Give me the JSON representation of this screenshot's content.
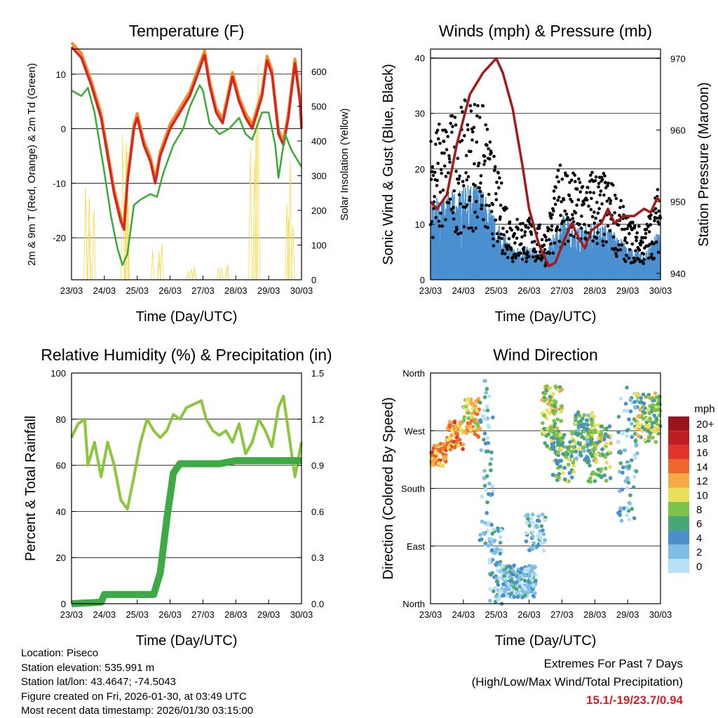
{
  "chart_data": [
    {
      "type": "line",
      "title": "Temperature (F)",
      "xlabel": "Time (Day/UTC)",
      "ylabel": "2m & 9m T (Red, Orange) & 2m Td (Green)",
      "y2label": "Solar Insolation (Yellow)",
      "xticks": [
        "23/03",
        "24/03",
        "25/03",
        "26/03",
        "27/03",
        "28/03",
        "29/03",
        "30/03"
      ],
      "ylim": [
        -27.7,
        14.6
      ],
      "yticks": [
        10,
        0,
        -10,
        -20
      ],
      "y2lim": [
        0,
        665
      ],
      "y2ticks": [
        0,
        100,
        200,
        300,
        400,
        500,
        600
      ],
      "series": [
        {
          "name": "2m T",
          "color": "#d7261e",
          "points": [
            [
              0,
              15
            ],
            [
              0.3,
              13
            ],
            [
              0.6,
              8
            ],
            [
              0.9,
              2
            ],
            [
              1.1,
              -5
            ],
            [
              1.3,
              -12
            ],
            [
              1.5,
              -17
            ],
            [
              1.6,
              -18.5
            ],
            [
              1.7,
              -10
            ],
            [
              1.9,
              0
            ],
            [
              2.0,
              2
            ],
            [
              2.2,
              -3
            ],
            [
              2.4,
              -6
            ],
            [
              2.55,
              -10
            ],
            [
              2.7,
              -5
            ],
            [
              3.0,
              0
            ],
            [
              3.3,
              3
            ],
            [
              3.6,
              6
            ],
            [
              3.9,
              11
            ],
            [
              4.05,
              13.5
            ],
            [
              4.2,
              8
            ],
            [
              4.4,
              3
            ],
            [
              4.6,
              1
            ],
            [
              4.9,
              9.5
            ],
            [
              5.1,
              5
            ],
            [
              5.3,
              2
            ],
            [
              5.5,
              0
            ],
            [
              5.8,
              6
            ],
            [
              5.95,
              12.5
            ],
            [
              6.1,
              10
            ],
            [
              6.3,
              -1
            ],
            [
              6.45,
              -3
            ],
            [
              6.6,
              2
            ],
            [
              6.8,
              12
            ],
            [
              6.95,
              5
            ],
            [
              7,
              0
            ]
          ]
        },
        {
          "name": "Td",
          "color": "#3aa935",
          "points": [
            [
              0,
              7
            ],
            [
              0.3,
              6
            ],
            [
              0.5,
              7.5
            ],
            [
              0.7,
              3
            ],
            [
              1,
              -8
            ],
            [
              1.2,
              -16
            ],
            [
              1.4,
              -22
            ],
            [
              1.55,
              -25
            ],
            [
              1.7,
              -23
            ],
            [
              1.9,
              -14
            ],
            [
              2.1,
              -13
            ],
            [
              2.4,
              -12
            ],
            [
              2.6,
              -12.5
            ],
            [
              2.8,
              -8
            ],
            [
              3.1,
              -3
            ],
            [
              3.4,
              0
            ],
            [
              3.6,
              4
            ],
            [
              3.9,
              8
            ],
            [
              4.0,
              7
            ],
            [
              4.2,
              1
            ],
            [
              4.5,
              -1
            ],
            [
              4.8,
              0
            ],
            [
              5.1,
              2
            ],
            [
              5.3,
              -1
            ],
            [
              5.5,
              -2
            ],
            [
              5.8,
              3
            ],
            [
              6.0,
              3
            ],
            [
              6.2,
              -3
            ],
            [
              6.3,
              -9
            ],
            [
              6.5,
              -1
            ],
            [
              6.7,
              -4
            ],
            [
              7,
              -7
            ]
          ]
        },
        {
          "name": "Solar",
          "color": "#f5d94a",
          "peaks": [
            [
              0.6,
              280
            ],
            [
              1.6,
              510
            ],
            [
              2.6,
              120
            ],
            [
              3.6,
              40
            ],
            [
              4.6,
              60
            ],
            [
              5.6,
              665
            ],
            [
              6.6,
              360
            ]
          ]
        }
      ]
    },
    {
      "type": "scatter",
      "title": "Winds (mph) & Pressure (mb)",
      "xlabel": "Time (Day/UTC)",
      "ylabel": "Sonic Wind & Gust (Blue, Black)",
      "y2label": "Station Pressure (Maroon)",
      "xticks": [
        "23/03",
        "24/03",
        "25/03",
        "26/03",
        "27/03",
        "28/03",
        "29/03",
        "30/03"
      ],
      "ylim": [
        0,
        41.6
      ],
      "yticks": [
        0,
        10,
        20,
        30,
        40
      ],
      "y2lim": [
        939.1,
        971.3
      ],
      "y2ticks": [
        940,
        950,
        960,
        970
      ],
      "series": [
        {
          "name": "Wind",
          "color": "#4a90d0",
          "points": [
            [
              0,
              12
            ],
            [
              0.5,
              13
            ],
            [
              1,
              14
            ],
            [
              1.5,
              15
            ],
            [
              2,
              9
            ],
            [
              2.5,
              5
            ],
            [
              3,
              5
            ],
            [
              3.5,
              4
            ],
            [
              4,
              10
            ],
            [
              4.5,
              8
            ],
            [
              5,
              9
            ],
            [
              5.5,
              8
            ],
            [
              6,
              5
            ],
            [
              6.5,
              4
            ],
            [
              7,
              8
            ]
          ]
        },
        {
          "name": "Gust",
          "color": "#000000",
          "factor": 1.7
        },
        {
          "name": "Pressure",
          "color": "#a31c1c",
          "points": [
            [
              0,
              950
            ],
            [
              0.2,
              949
            ],
            [
              0.5,
              951
            ],
            [
              0.8,
              958
            ],
            [
              1.2,
              965
            ],
            [
              1.6,
              968
            ],
            [
              2.0,
              970
            ],
            [
              2.2,
              968
            ],
            [
              2.5,
              963
            ],
            [
              2.8,
              955
            ],
            [
              3.0,
              949
            ],
            [
              3.3,
              944
            ],
            [
              3.6,
              941
            ],
            [
              3.8,
              941.5
            ],
            [
              4.1,
              945
            ],
            [
              4.3,
              947
            ],
            [
              4.5,
              945
            ],
            [
              4.7,
              943.5
            ],
            [
              4.9,
              946
            ],
            [
              5.2,
              947
            ],
            [
              5.4,
              949
            ],
            [
              5.6,
              947
            ],
            [
              5.9,
              948
            ],
            [
              6.2,
              948
            ],
            [
              6.5,
              949
            ],
            [
              6.7,
              948.5
            ],
            [
              6.9,
              950.5
            ],
            [
              7,
              950
            ]
          ]
        }
      ]
    },
    {
      "type": "line",
      "title": "Relative Humidity (%) & Precipitation (in)",
      "xlabel": "Time (Day/UTC)",
      "ylabel": "Percent & Total Rainfall",
      "xticks": [
        "23/03",
        "24/03",
        "25/03",
        "26/03",
        "27/03",
        "28/03",
        "29/03",
        "30/03"
      ],
      "ylim": [
        0,
        100
      ],
      "yticks": [
        0,
        20,
        40,
        60,
        80,
        100
      ],
      "y2lim": [
        0,
        1.5
      ],
      "y2ticks": [
        "0.0",
        "0.3",
        "0.6",
        "0.9",
        "1.2",
        "1.5"
      ],
      "series": [
        {
          "name": "RH",
          "color": "#8cc63f",
          "points": [
            [
              0,
              72
            ],
            [
              0.2,
              78
            ],
            [
              0.4,
              80
            ],
            [
              0.5,
              60
            ],
            [
              0.7,
              70
            ],
            [
              0.9,
              55
            ],
            [
              1.1,
              70
            ],
            [
              1.3,
              60
            ],
            [
              1.5,
              45
            ],
            [
              1.7,
              41
            ],
            [
              1.9,
              55
            ],
            [
              2.1,
              70
            ],
            [
              2.3,
              80
            ],
            [
              2.5,
              75
            ],
            [
              2.7,
              72
            ],
            [
              2.9,
              75
            ],
            [
              3.1,
              82
            ],
            [
              3.3,
              80
            ],
            [
              3.5,
              85
            ],
            [
              3.8,
              87
            ],
            [
              3.95,
              88
            ],
            [
              4.1,
              80
            ],
            [
              4.3,
              75
            ],
            [
              4.5,
              73
            ],
            [
              4.7,
              75
            ],
            [
              4.9,
              70
            ],
            [
              5.1,
              78
            ],
            [
              5.3,
              65
            ],
            [
              5.5,
              70
            ],
            [
              5.7,
              80
            ],
            [
              5.9,
              75
            ],
            [
              6.1,
              68
            ],
            [
              6.3,
              85
            ],
            [
              6.45,
              90
            ],
            [
              6.6,
              75
            ],
            [
              6.8,
              55
            ],
            [
              7,
              70
            ]
          ]
        },
        {
          "name": "Precip",
          "color": "#3daa45",
          "points": [
            [
              0,
              0
            ],
            [
              0.9,
              0.01
            ],
            [
              1.0,
              0.06
            ],
            [
              2.5,
              0.06
            ],
            [
              2.7,
              0.2
            ],
            [
              2.9,
              0.55
            ],
            [
              3.1,
              0.85
            ],
            [
              3.3,
              0.91
            ],
            [
              4.5,
              0.91
            ],
            [
              5,
              0.93
            ],
            [
              7,
              0.93
            ]
          ]
        }
      ]
    },
    {
      "type": "scatter",
      "title": "Wind Direction",
      "xlabel": "Time (Day/UTC)",
      "ylabel": "Direction (Colored By Speed)",
      "xticks": [
        "23/03",
        "24/03",
        "25/03",
        "26/03",
        "27/03",
        "28/03",
        "29/03",
        "30/03"
      ],
      "ylim": [
        0,
        360
      ],
      "yticks": [
        "North",
        "East",
        "South",
        "West",
        "North"
      ],
      "legend": {
        "title": "mph",
        "labels": [
          "20+",
          "18",
          "16",
          "14",
          "12",
          "10",
          "8",
          "6",
          "4",
          "2",
          "0"
        ],
        "colors": [
          "#98161b",
          "#bd1e24",
          "#e0342a",
          "#f2652b",
          "#f7a945",
          "#e8e05a",
          "#7dc24a",
          "#46a874",
          "#4a8fc8",
          "#7fbce6",
          "#b7e1f7"
        ],
        "placement": "right"
      },
      "clusters": [
        [
          0,
          0.5,
          215,
          250,
          13,
          70
        ],
        [
          0.5,
          1.0,
          240,
          285,
          14,
          70
        ],
        [
          1.0,
          1.5,
          260,
          320,
          12,
          60
        ],
        [
          1.5,
          1.9,
          90,
          350,
          4,
          60
        ],
        [
          1.8,
          2.2,
          0,
          120,
          3,
          70
        ],
        [
          2.2,
          3.2,
          10,
          60,
          3,
          220
        ],
        [
          2.9,
          3.5,
          80,
          140,
          3,
          50
        ],
        [
          3.4,
          4.0,
          240,
          340,
          10,
          110
        ],
        [
          3.7,
          4.4,
          190,
          270,
          8,
          90
        ],
        [
          4.4,
          5.0,
          220,
          300,
          7,
          110
        ],
        [
          4.8,
          5.5,
          190,
          280,
          9,
          90
        ],
        [
          5.7,
          6.3,
          120,
          340,
          4,
          80
        ],
        [
          6.2,
          7.0,
          250,
          330,
          9,
          120
        ]
      ]
    }
  ],
  "info": {
    "location": "Location: Piseco",
    "elevation": "Station elevation: 535.991 m",
    "latlon": "Station lat/lon: 43.4647; -74.5043",
    "created": "Figure created on Fri, 2026-01-30, at 03:49 UTC",
    "timestamp": "Most recent data timestamp: 2026/01/30 03:15:00"
  },
  "extremes": {
    "title": "Extremes For Past 7 Days",
    "subtitle": "(High/Low/Max Wind/Total Precipitation)",
    "values": "15.1/-19/23.7/0.94"
  }
}
